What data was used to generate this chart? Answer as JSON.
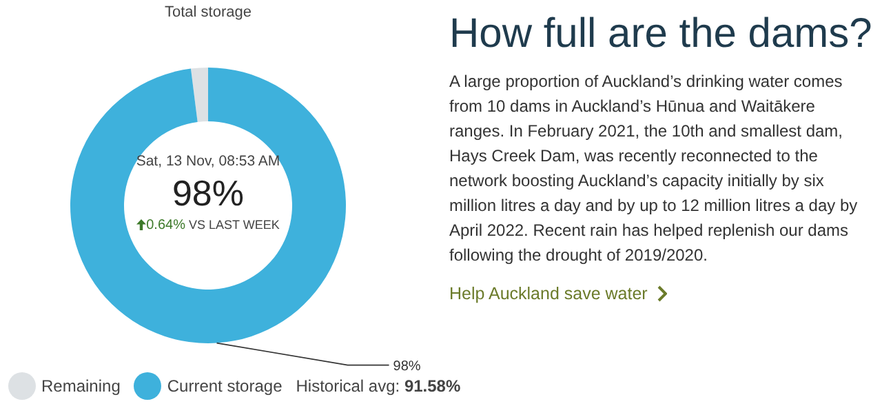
{
  "chart_data": [
    {
      "type": "donut",
      "title": "Total storage",
      "categories": [
        "Remaining",
        "Current storage"
      ],
      "values": [
        2,
        98
      ],
      "colors": [
        "#dde1e4",
        "#3eb1dc"
      ],
      "value_labels": [
        null,
        "98%"
      ],
      "legend": "bottom",
      "annotations": [
        "Sat, 13 Nov, 08:53 AM",
        "98%",
        "0.64%",
        "VS LAST WEEK",
        "Historical avg: ",
        "91.58%"
      ]
    },
    {
      "type": "other",
      "title": "How full are the dams?",
      "annotations": [
        "A large proportion of Auckland’s drinking water comes from 10 dams in Auckland’s Hūnua and Waitākere ranges. In February 2021, the 10th and smallest dam, Hays Creek Dam, was recently reconnected to the network boosting Auckland’s capacity initially by six million litres a day and by up to 12 million litres a day by April 2022. Recent rain has helped replenish our dams following the drought of 2019/2020.",
        "Help Auckland save water"
      ]
    }
  ]
}
